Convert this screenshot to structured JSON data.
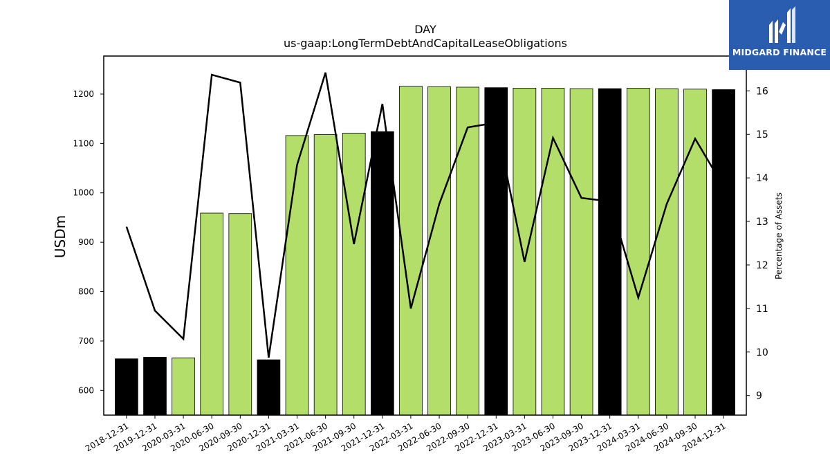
{
  "logo": {
    "text": "MIDGARD FINANCE",
    "bg_color": "#2a5db0"
  },
  "chart_data": {
    "type": "bar",
    "title": "DAY",
    "subtitle": "us-gaap:LongTermDebtAndCapitalLeaseObligations",
    "ylabel": "USDm",
    "y2label": "Percentage of Assets",
    "ylim": [
      550,
      1277
    ],
    "y2lim": [
      8.55,
      16.8
    ],
    "yticks": [
      600,
      700,
      800,
      900,
      1000,
      1100,
      1200
    ],
    "y2ticks": [
      9,
      10,
      11,
      12,
      13,
      14,
      15,
      16
    ],
    "categories": [
      "2018-12-31",
      "2019-12-31",
      "2020-03-31",
      "2020-06-30",
      "2020-09-30",
      "2020-12-31",
      "2021-03-31",
      "2021-06-30",
      "2021-09-30",
      "2021-12-31",
      "2022-03-31",
      "2022-06-30",
      "2022-09-30",
      "2022-12-31",
      "2023-03-31",
      "2023-06-30",
      "2023-09-30",
      "2023-12-31",
      "2024-03-31",
      "2024-06-30",
      "2024-09-30",
      "2024-12-31"
    ],
    "series": [
      {
        "type": "bar",
        "axis": "left",
        "values": [
          664,
          667,
          666,
          959,
          958,
          662,
          1116,
          1118,
          1121,
          1124,
          1216,
          1215,
          1214,
          1213,
          1212,
          1212,
          1211,
          1211,
          1212,
          1211,
          1210,
          1209
        ],
        "colors": [
          "#000000",
          "#000000",
          "#b3de69",
          "#b3de69",
          "#b3de69",
          "#000000",
          "#b3de69",
          "#b3de69",
          "#b3de69",
          "#000000",
          "#b3de69",
          "#b3de69",
          "#b3de69",
          "#000000",
          "#b3de69",
          "#b3de69",
          "#b3de69",
          "#000000",
          "#b3de69",
          "#b3de69",
          "#b3de69",
          "#000000"
        ]
      },
      {
        "type": "line",
        "axis": "right",
        "color": "#000000",
        "values": [
          12.88,
          10.95,
          10.3,
          16.37,
          16.19,
          9.87,
          14.3,
          16.42,
          12.48,
          15.7,
          11.0,
          13.4,
          15.16,
          15.27,
          12.07,
          14.92,
          13.54,
          13.46,
          11.25,
          13.4,
          14.9,
          13.8
        ]
      }
    ],
    "legend": "none",
    "grid": false
  }
}
